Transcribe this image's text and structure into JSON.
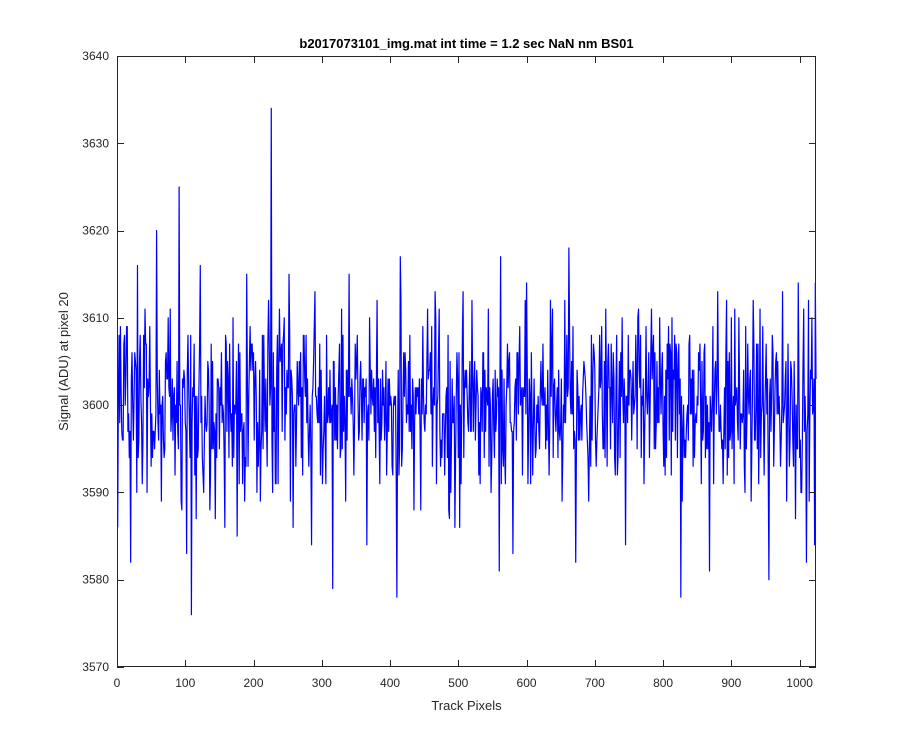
{
  "chart_data": {
    "type": "line",
    "title": "b2017073101_img.mat int time = 1.2 sec  NaN nm BS01",
    "xlabel": "Track Pixels",
    "ylabel": "Signal (ADU) at pixel 20",
    "xlim": [
      0,
      1024
    ],
    "ylim": [
      3570,
      3640
    ],
    "xticks": [
      0,
      100,
      200,
      300,
      400,
      500,
      600,
      700,
      800,
      900,
      1000
    ],
    "yticks": [
      3570,
      3580,
      3590,
      3600,
      3610,
      3620,
      3630,
      3640
    ],
    "grid": false,
    "series": [
      {
        "color": "#0000ff",
        "x_start": 1,
        "x_step": 1,
        "count": 1024,
        "baseline": 3600,
        "spread": 5,
        "peaks": [
          {
            "x": 3,
            "y": 3608
          },
          {
            "x": 8,
            "y": 3596
          },
          {
            "x": 15,
            "y": 3609
          },
          {
            "x": 20,
            "y": 3582
          },
          {
            "x": 30,
            "y": 3616
          },
          {
            "x": 44,
            "y": 3590
          },
          {
            "x": 58,
            "y": 3620
          },
          {
            "x": 65,
            "y": 3589
          },
          {
            "x": 78,
            "y": 3611
          },
          {
            "x": 91,
            "y": 3625
          },
          {
            "x": 95,
            "y": 3588
          },
          {
            "x": 102,
            "y": 3583
          },
          {
            "x": 109,
            "y": 3576
          },
          {
            "x": 116,
            "y": 3587
          },
          {
            "x": 122,
            "y": 3616
          },
          {
            "x": 136,
            "y": 3588
          },
          {
            "x": 158,
            "y": 3586
          },
          {
            "x": 176,
            "y": 3585
          },
          {
            "x": 190,
            "y": 3615
          },
          {
            "x": 205,
            "y": 3590
          },
          {
            "x": 226,
            "y": 3634
          },
          {
            "x": 236,
            "y": 3591
          },
          {
            "x": 252,
            "y": 3615
          },
          {
            "x": 285,
            "y": 3584
          },
          {
            "x": 316,
            "y": 3579
          },
          {
            "x": 340,
            "y": 3615
          },
          {
            "x": 366,
            "y": 3584
          },
          {
            "x": 381,
            "y": 3612
          },
          {
            "x": 410,
            "y": 3578
          },
          {
            "x": 415,
            "y": 3617
          },
          {
            "x": 445,
            "y": 3588
          },
          {
            "x": 466,
            "y": 3613
          },
          {
            "x": 495,
            "y": 3586
          },
          {
            "x": 520,
            "y": 3612
          },
          {
            "x": 560,
            "y": 3581
          },
          {
            "x": 562,
            "y": 3617
          },
          {
            "x": 580,
            "y": 3583
          },
          {
            "x": 600,
            "y": 3614
          },
          {
            "x": 635,
            "y": 3612
          },
          {
            "x": 662,
            "y": 3618
          },
          {
            "x": 672,
            "y": 3582
          },
          {
            "x": 716,
            "y": 3611
          },
          {
            "x": 745,
            "y": 3584
          },
          {
            "x": 783,
            "y": 3611
          },
          {
            "x": 826,
            "y": 3578
          },
          {
            "x": 868,
            "y": 3581
          },
          {
            "x": 880,
            "y": 3613
          },
          {
            "x": 920,
            "y": 3590
          },
          {
            "x": 955,
            "y": 3580
          },
          {
            "x": 975,
            "y": 3613
          },
          {
            "x": 998,
            "y": 3614
          },
          {
            "x": 1010,
            "y": 3582
          },
          {
            "x": 1018,
            "y": 3610
          },
          {
            "x": 1022,
            "y": 3584
          }
        ]
      }
    ]
  }
}
